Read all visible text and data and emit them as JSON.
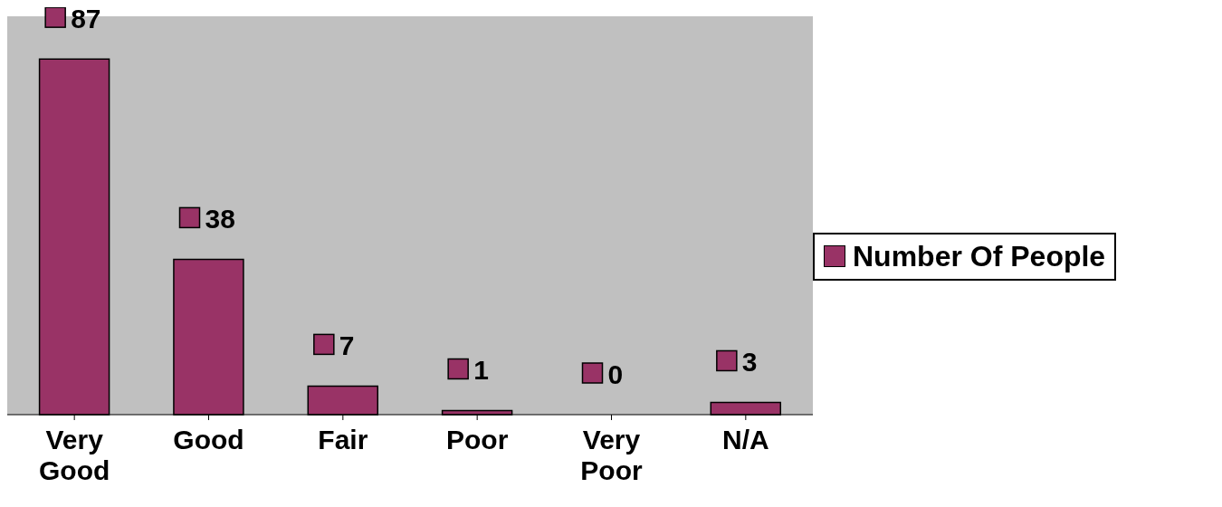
{
  "chart_data": {
    "type": "bar",
    "categories": [
      "Very Good",
      "Good",
      "Fair",
      "Poor",
      "Very Poor",
      "N/A"
    ],
    "series": [
      {
        "name": "Number Of People",
        "color": "#993366",
        "values": [
          87,
          38,
          7,
          1,
          0,
          3
        ]
      }
    ],
    "data_labels": true,
    "legend": "right",
    "grid": false
  }
}
